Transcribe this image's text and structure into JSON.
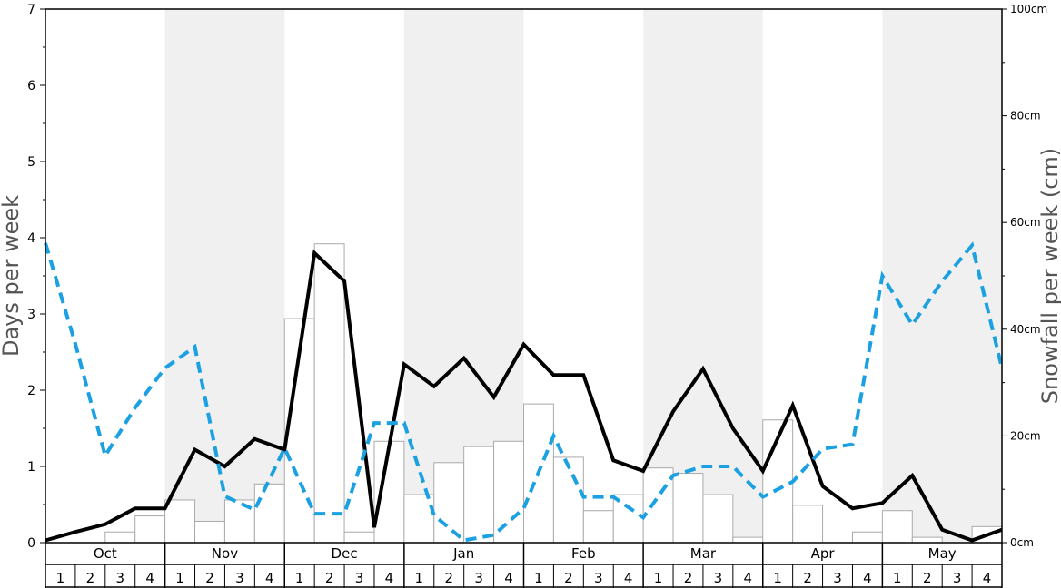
{
  "chart_data": {
    "type": "bar",
    "y_left_label": "Days per week",
    "y_right_label": "Snowfall per week (cm)",
    "y_left_ticks": [
      "0",
      "1",
      "2",
      "3",
      "4",
      "5",
      "6",
      "7"
    ],
    "y_right_ticks": [
      "0cm",
      "20cm",
      "40cm",
      "60cm",
      "80cm",
      "100cm"
    ],
    "ylim_left": [
      0,
      7
    ],
    "ylim_right": [
      0,
      100
    ],
    "months": [
      "Oct",
      "Nov",
      "Dec",
      "Jan",
      "Feb",
      "Mar",
      "Apr",
      "May"
    ],
    "week_labels": [
      "1",
      "2",
      "3",
      "4"
    ],
    "series": [
      {
        "kind": "bar",
        "axis": "right",
        "unit": "cm",
        "values": [
          0,
          0,
          2,
          5,
          8,
          4,
          8,
          11,
          42,
          56,
          2,
          19,
          9,
          15,
          18,
          19,
          26,
          16,
          6,
          9,
          14,
          13,
          9,
          1,
          23,
          7,
          0,
          2,
          6,
          1,
          0,
          3
        ],
        "color": "#ffffff",
        "stroke": "#aaaaaa"
      },
      {
        "kind": "line",
        "axis": "left",
        "unit": "days",
        "values": [
          0.03,
          0.14,
          0.24,
          0.45,
          0.45,
          1.22,
          1.0,
          1.36,
          1.22,
          3.8,
          3.43,
          0.2,
          2.34,
          2.05,
          2.42,
          1.91,
          2.6,
          2.2,
          2.2,
          1.08,
          0.94,
          1.72,
          2.28,
          1.5,
          0.94,
          1.8,
          0.74,
          0.45,
          0.52,
          0.88,
          0.17,
          0.03,
          0.17
        ],
        "color": "#000000"
      },
      {
        "kind": "line",
        "axis": "left",
        "unit": "days",
        "dashed": true,
        "values": [
          3.93,
          2.61,
          1.14,
          1.77,
          2.29,
          2.57,
          0.61,
          0.43,
          1.24,
          0.38,
          0.38,
          1.57,
          1.57,
          0.36,
          0.03,
          0.1,
          0.45,
          1.4,
          0.6,
          0.6,
          0.33,
          0.88,
          1.0,
          1.0,
          0.6,
          0.8,
          1.23,
          1.29,
          3.5,
          2.86,
          3.43,
          3.9,
          2.29
        ],
        "color": "#1ba1e2"
      }
    ],
    "grid": false,
    "alternate_shaded_months": true,
    "shade_color": "#f0f0f0"
  }
}
